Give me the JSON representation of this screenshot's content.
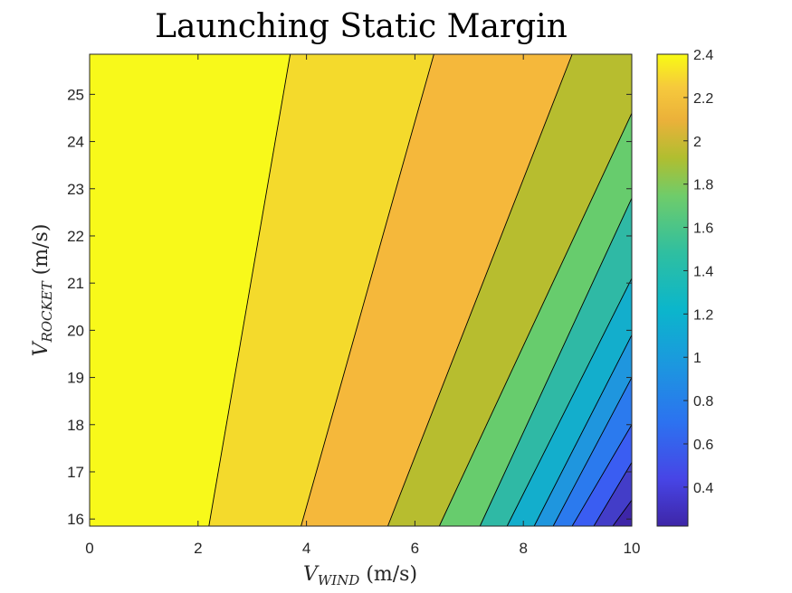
{
  "chart_data": {
    "type": "contour",
    "title": "Launching Static Margin",
    "xlabel": {
      "symbol": "V",
      "subscript": "WIND",
      "unit": " (m/s)"
    },
    "ylabel": {
      "symbol": "V",
      "subscript": "ROCKET",
      "unit": " (m/s)"
    },
    "xlim": [
      0,
      10
    ],
    "ylim": [
      15.85,
      25.85
    ],
    "x_ticks": [
      0,
      2,
      4,
      6,
      8,
      10
    ],
    "y_ticks": [
      16,
      17,
      18,
      19,
      20,
      21,
      22,
      23,
      24,
      25
    ],
    "colorbar": {
      "colormap": "parula",
      "range": [
        0.22,
        2.4
      ],
      "ticks": [
        0.4,
        0.6,
        0.8,
        1,
        1.2,
        1.4,
        1.6,
        1.8,
        2,
        2.2,
        2.4
      ]
    },
    "contour_levels": [
      2.4,
      2.2,
      2.0,
      1.8,
      1.6,
      1.4,
      1.2,
      1.0,
      0.8,
      0.6,
      0.4,
      0.22
    ],
    "contour_lines": [
      {
        "level": 2.2,
        "points": [
          [
            2.2,
            15.85
          ],
          [
            3.7,
            25.85
          ]
        ]
      },
      {
        "level": 2.0,
        "points": [
          [
            3.9,
            15.85
          ],
          [
            6.35,
            25.85
          ]
        ]
      },
      {
        "level": 1.8,
        "points": [
          [
            5.5,
            15.85
          ],
          [
            8.9,
            25.85
          ]
        ]
      },
      {
        "level": 1.6,
        "points": [
          [
            6.45,
            15.85
          ],
          [
            10,
            24.6
          ]
        ]
      },
      {
        "level": 1.4,
        "points": [
          [
            7.2,
            15.85
          ],
          [
            10,
            22.8
          ]
        ]
      },
      {
        "level": 1.2,
        "points": [
          [
            7.7,
            15.85
          ],
          [
            10,
            21.1
          ]
        ]
      },
      {
        "level": 1.0,
        "points": [
          [
            8.2,
            15.85
          ],
          [
            10,
            19.9
          ]
        ]
      },
      {
        "level": 0.8,
        "points": [
          [
            8.55,
            15.85
          ],
          [
            10,
            19.0
          ]
        ]
      },
      {
        "level": 0.6,
        "points": [
          [
            8.9,
            15.85
          ],
          [
            10,
            18.0
          ]
        ]
      },
      {
        "level": 0.4,
        "points": [
          [
            9.3,
            15.85
          ],
          [
            10,
            17.2
          ]
        ]
      },
      {
        "level": 0.3,
        "points": [
          [
            9.65,
            15.85
          ],
          [
            10,
            16.4
          ]
        ]
      }
    ],
    "fill_colors": [
      "#F8F91A",
      "#F4DA2C",
      "#F5B83B",
      "#B7BD2F",
      "#67CC6D",
      "#2FB9A5",
      "#13AECC",
      "#1F96DE",
      "#2B7AEE",
      "#3A5DF2",
      "#433DC8",
      "#3E26A8"
    ]
  }
}
